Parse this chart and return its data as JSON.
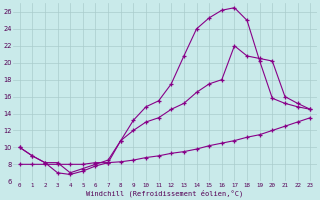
{
  "xlabel": "Windchill (Refroidissement éolien,°C)",
  "background_color": "#c9eaea",
  "line_color": "#880088",
  "grid_color": "#aacccc",
  "xlim": [
    -0.5,
    23.5
  ],
  "ylim": [
    6,
    27
  ],
  "yticks": [
    6,
    8,
    10,
    12,
    14,
    16,
    18,
    20,
    22,
    24,
    26
  ],
  "xticks": [
    0,
    1,
    2,
    3,
    4,
    5,
    6,
    7,
    8,
    9,
    10,
    11,
    12,
    13,
    14,
    15,
    16,
    17,
    18,
    19,
    20,
    21,
    22,
    23
  ],
  "line1_x": [
    0,
    1,
    2,
    3,
    4,
    5,
    6,
    7,
    8,
    9,
    10,
    11,
    12,
    13,
    14,
    15,
    16,
    17,
    18,
    19,
    20,
    21,
    22,
    23
  ],
  "line1_y": [
    10.0,
    9.0,
    8.2,
    7.0,
    6.8,
    7.2,
    7.8,
    8.2,
    10.8,
    13.2,
    14.8,
    15.5,
    17.5,
    20.8,
    24.0,
    25.3,
    26.2,
    26.5,
    25.0,
    20.2,
    15.8,
    15.2,
    14.8,
    14.5
  ],
  "line2_x": [
    0,
    1,
    2,
    3,
    4,
    5,
    6,
    7,
    8,
    9,
    10,
    11,
    12,
    13,
    14,
    15,
    16,
    17,
    18,
    19,
    20,
    21,
    22,
    23
  ],
  "line2_y": [
    10.0,
    9.0,
    8.2,
    8.2,
    7.0,
    7.5,
    8.0,
    8.5,
    10.8,
    12.0,
    13.0,
    13.5,
    14.5,
    15.2,
    16.5,
    17.5,
    18.0,
    22.0,
    20.8,
    20.5,
    20.2,
    16.0,
    15.2,
    14.5
  ],
  "line3_x": [
    0,
    1,
    2,
    3,
    4,
    5,
    6,
    7,
    8,
    9,
    10,
    11,
    12,
    13,
    14,
    15,
    16,
    17,
    18,
    19,
    20,
    21,
    22,
    23
  ],
  "line3_y": [
    8.0,
    8.0,
    8.0,
    8.0,
    8.0,
    8.0,
    8.2,
    8.2,
    8.3,
    8.5,
    8.8,
    9.0,
    9.3,
    9.5,
    9.8,
    10.2,
    10.5,
    10.8,
    11.2,
    11.5,
    12.0,
    12.5,
    13.0,
    13.5
  ]
}
